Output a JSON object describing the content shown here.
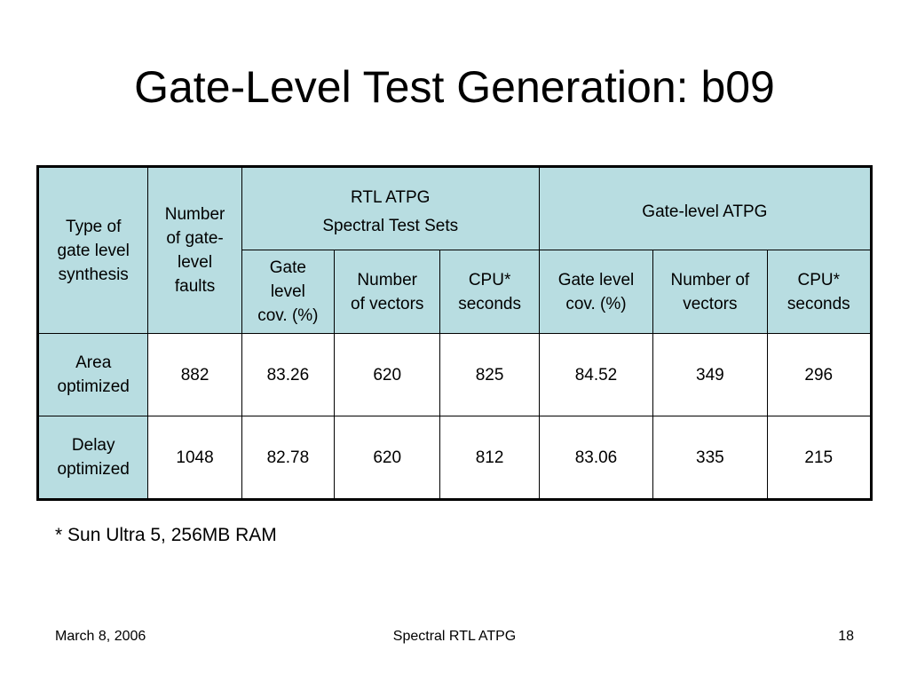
{
  "title": "Gate-Level Test Generation: b09",
  "table": {
    "header": {
      "type_label": [
        "Type of",
        "gate level",
        "synthesis"
      ],
      "faults_label": [
        "Number",
        "of gate-",
        "level",
        "faults"
      ],
      "rtl_group": [
        "RTL ATPG",
        "Spectral Test Sets"
      ],
      "gate_group": "Gate-level ATPG",
      "rtl_cov": [
        "Gate",
        "level",
        "cov. (%)"
      ],
      "rtl_vectors": [
        "Number",
        "of vectors"
      ],
      "rtl_cpu": [
        "CPU*",
        "seconds"
      ],
      "gate_cov": [
        "Gate level",
        "cov. (%)"
      ],
      "gate_vectors": [
        "Number of",
        "vectors"
      ],
      "gate_cpu": [
        "CPU*",
        "seconds"
      ]
    },
    "rows": [
      {
        "type": [
          "Area",
          "optimized"
        ],
        "faults": "882",
        "rtl_cov": "83.26",
        "rtl_vectors": "620",
        "rtl_cpu": "825",
        "gate_cov": "84.52",
        "gate_vectors": "349",
        "gate_cpu": "296"
      },
      {
        "type": [
          "Delay",
          "optimized"
        ],
        "faults": "1048",
        "rtl_cov": "82.78",
        "rtl_vectors": "620",
        "rtl_cpu": "812",
        "gate_cov": "83.06",
        "gate_vectors": "335",
        "gate_cpu": "215"
      }
    ]
  },
  "footnote": "* Sun Ultra 5, 256MB RAM",
  "footer": {
    "date": "March 8, 2006",
    "center": "Spectral RTL ATPG",
    "page": "18"
  },
  "colors": {
    "header_fill": "#b8dde1",
    "border": "#000000"
  }
}
